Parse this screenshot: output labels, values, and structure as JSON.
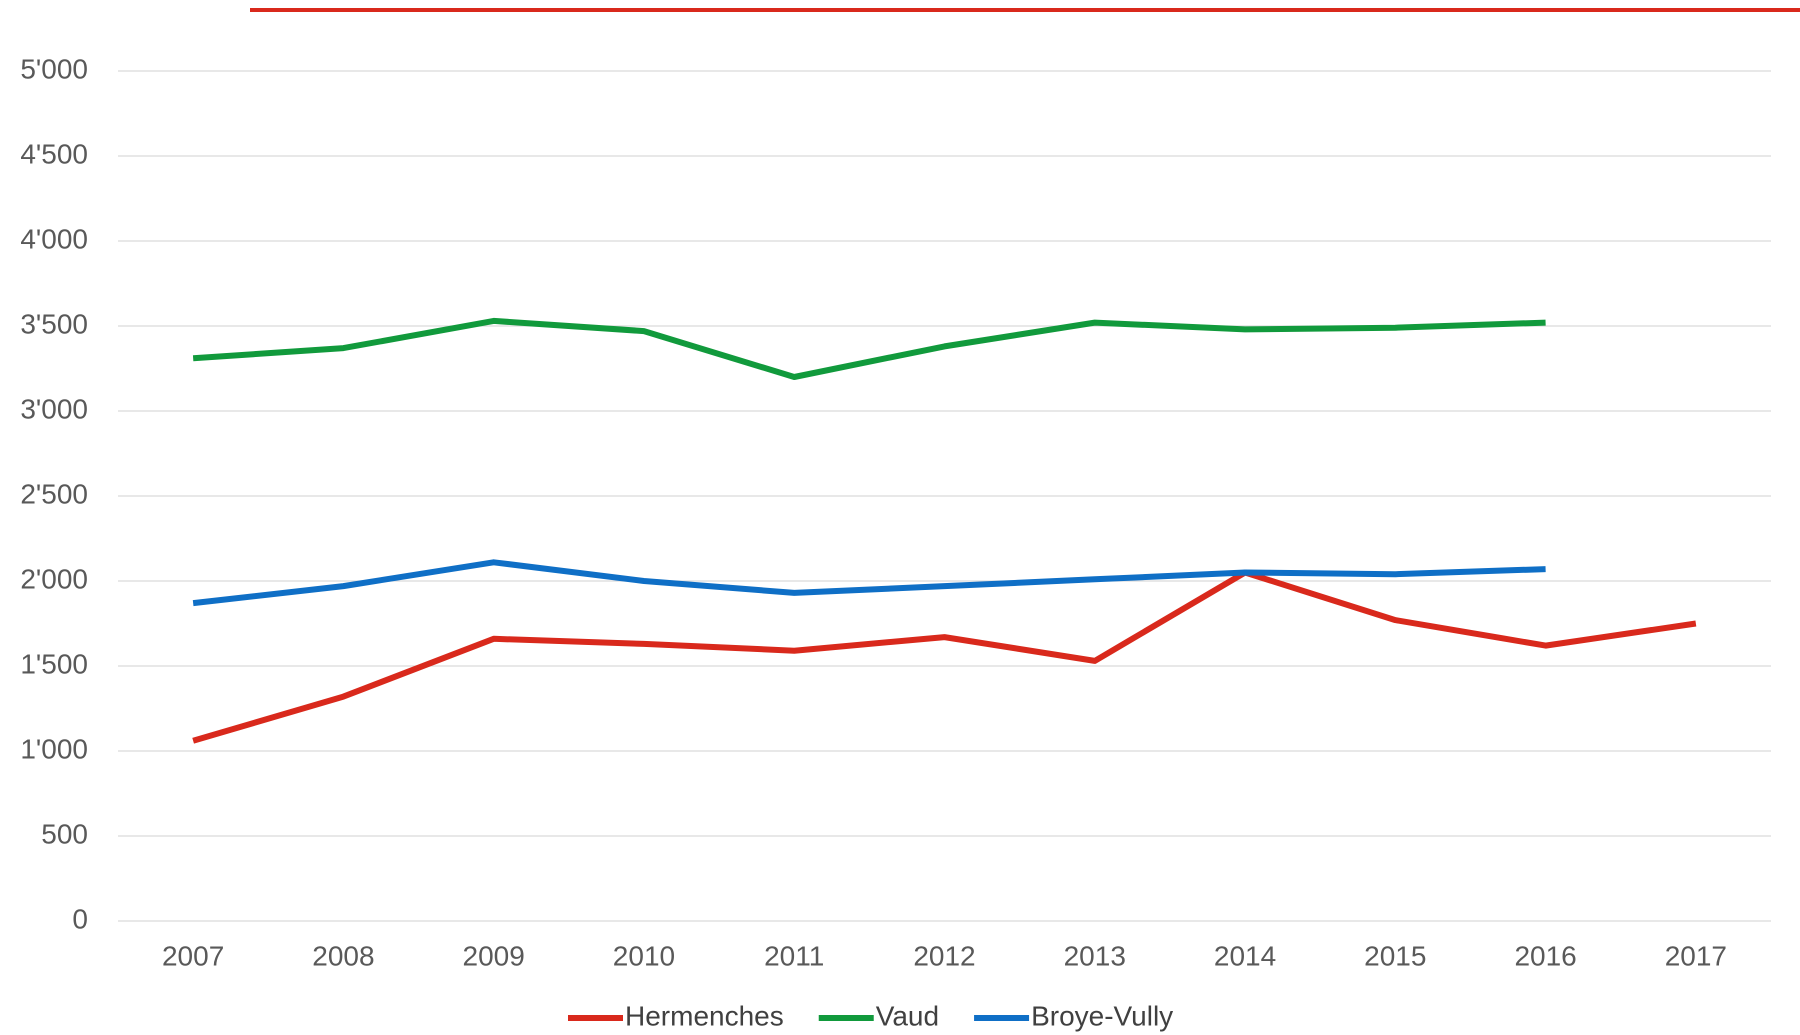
{
  "chart_data": {
    "type": "line",
    "categories": [
      "2007",
      "2008",
      "2009",
      "2010",
      "2011",
      "2012",
      "2013",
      "2014",
      "2015",
      "2016",
      "2017"
    ],
    "series": [
      {
        "name": "Hermenches",
        "color": "#d9291c",
        "values": [
          1060,
          1320,
          1660,
          1630,
          1590,
          1670,
          1530,
          2050,
          1770,
          1620,
          1750
        ]
      },
      {
        "name": "Vaud",
        "color": "#119a3c",
        "values": [
          3310,
          3370,
          3530,
          3470,
          3200,
          3380,
          3520,
          3480,
          3490,
          3520,
          null
        ]
      },
      {
        "name": "Broye-Vully",
        "color": "#0f6fc6",
        "values": [
          1870,
          1970,
          2110,
          2000,
          1930,
          1970,
          2010,
          2050,
          2040,
          2070,
          null
        ]
      }
    ],
    "ylim": [
      0,
      5000
    ],
    "yticks": [
      0,
      500,
      {
        "value": 1000,
        "label": "1'000"
      },
      {
        "value": 1500,
        "label": "1'500"
      },
      {
        "value": 2000,
        "label": "2'000"
      },
      {
        "value": 2500,
        "label": "2'500"
      },
      {
        "value": 3000,
        "label": "3'000"
      },
      {
        "value": 3500,
        "label": "3'500"
      },
      {
        "value": 4000,
        "label": "4'000"
      },
      {
        "value": 4500,
        "label": "4'500"
      },
      {
        "value": 5000,
        "label": "5'000"
      }
    ],
    "grid": true,
    "legend": "bottom"
  }
}
